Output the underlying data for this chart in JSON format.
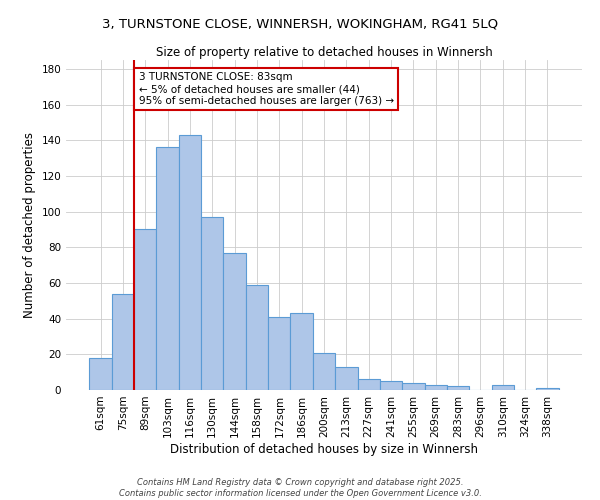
{
  "title_line1": "3, TURNSTONE CLOSE, WINNERSH, WOKINGHAM, RG41 5LQ",
  "title_line2": "Size of property relative to detached houses in Winnersh",
  "xlabel": "Distribution of detached houses by size in Winnersh",
  "ylabel": "Number of detached properties",
  "bar_labels": [
    "61sqm",
    "75sqm",
    "89sqm",
    "103sqm",
    "116sqm",
    "130sqm",
    "144sqm",
    "158sqm",
    "172sqm",
    "186sqm",
    "200sqm",
    "213sqm",
    "227sqm",
    "241sqm",
    "255sqm",
    "269sqm",
    "283sqm",
    "296sqm",
    "310sqm",
    "324sqm",
    "338sqm"
  ],
  "bar_values": [
    18,
    54,
    90,
    136,
    143,
    97,
    77,
    59,
    41,
    43,
    21,
    13,
    6,
    5,
    4,
    3,
    2,
    0,
    3,
    0,
    1
  ],
  "bar_color": "#aec6e8",
  "bar_edgecolor": "#5b9bd5",
  "vline_x_index": 1.5,
  "vline_color": "#cc0000",
  "annotation_text": "3 TURNSTONE CLOSE: 83sqm\n← 5% of detached houses are smaller (44)\n95% of semi-detached houses are larger (763) →",
  "annotation_box_edgecolor": "#cc0000",
  "annotation_box_facecolor": "#ffffff",
  "ylim": [
    0,
    185
  ],
  "yticks": [
    0,
    20,
    40,
    60,
    80,
    100,
    120,
    140,
    160,
    180
  ],
  "footer_line1": "Contains HM Land Registry data © Crown copyright and database right 2025.",
  "footer_line2": "Contains public sector information licensed under the Open Government Licence v3.0.",
  "background_color": "#ffffff",
  "grid_color": "#cccccc",
  "title1_fontsize": 9.5,
  "title2_fontsize": 8.5,
  "xlabel_fontsize": 8.5,
  "ylabel_fontsize": 8.5,
  "tick_fontsize": 7.5,
  "ann_fontsize": 7.5,
  "footer_fontsize": 6.0
}
